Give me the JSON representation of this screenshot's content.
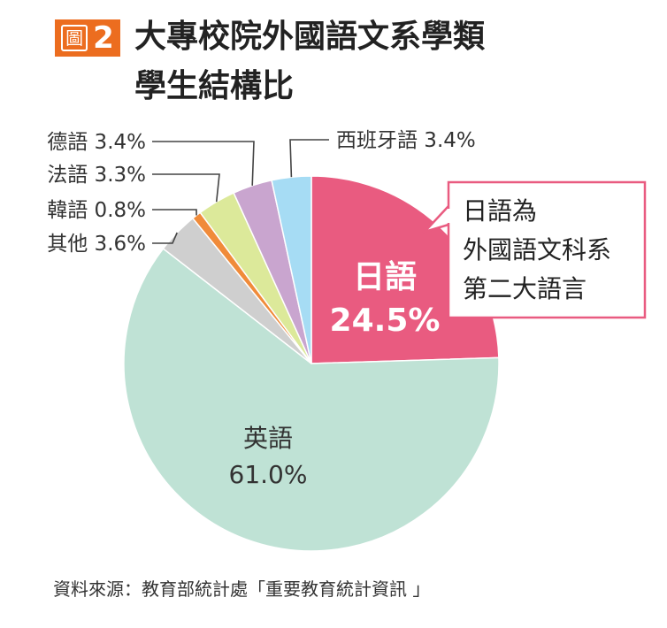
{
  "figure": {
    "badge_char": "圖",
    "badge_number": "2",
    "title_lines": [
      "大專校院外國語文系學類",
      "學生結構比"
    ],
    "source": "資料來源：教育部統計處「重要教育統計資訊 」"
  },
  "colors": {
    "badge": "#ec6d1f",
    "japanese": "#e95b80",
    "english": "#bfe2d5",
    "other": "#cfcfcf",
    "korean": "#f08b3a",
    "french": "#dce99a",
    "german": "#c9a5cf",
    "spanish": "#a6dcf4",
    "callout_border": "#e95b80"
  },
  "chart_data": {
    "type": "pie",
    "start_angle_deg": 0,
    "direction": "clockwise",
    "slices": [
      {
        "name": "日語",
        "value": 24.5,
        "label": "24.5%",
        "color": "#e95b80",
        "placement": "inside-bold"
      },
      {
        "name": "英語",
        "value": 61.0,
        "label": "61.0%",
        "color": "#bfe2d5",
        "placement": "inside"
      },
      {
        "name": "其他",
        "value": 3.6,
        "label": "3.6%",
        "color": "#cfcfcf",
        "placement": "leader"
      },
      {
        "name": "韓語",
        "value": 0.8,
        "label": "0.8%",
        "color": "#f08b3a",
        "placement": "leader"
      },
      {
        "name": "法語",
        "value": 3.3,
        "label": "3.3%",
        "color": "#dce99a",
        "placement": "leader"
      },
      {
        "name": "德語",
        "value": 3.4,
        "label": "3.4%",
        "color": "#c9a5cf",
        "placement": "leader"
      },
      {
        "name": "西班牙語",
        "value": 3.4,
        "label": "3.4%",
        "color": "#a6dcf4",
        "placement": "leader-right"
      }
    ],
    "annotation": {
      "lines": [
        "日語為",
        "外國語文科系",
        "第二大語言"
      ]
    }
  }
}
